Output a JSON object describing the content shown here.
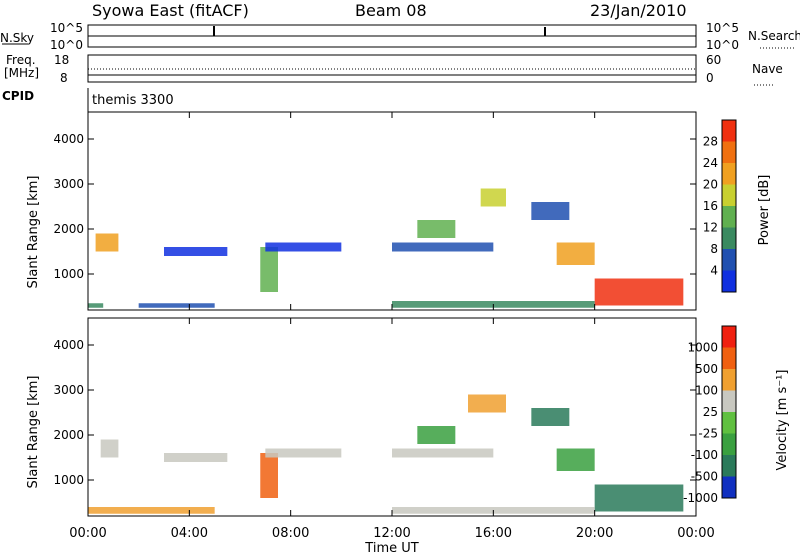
{
  "header": {
    "station": "Syowa East (fitACF)",
    "beam": "Beam 08",
    "date": "23/Jan/2010"
  },
  "nsky_panel": {
    "left_label": "N.Sky",
    "left_ticks": [
      "10^5",
      "10^0"
    ],
    "right_ticks": [
      "10^5",
      "10^0"
    ],
    "right_label": "N.Search"
  },
  "freq_panel": {
    "left_label_1": "Freq.",
    "left_label_2": "[MHz]",
    "left_ticks": [
      "18",
      "8"
    ],
    "right_ticks": [
      "60",
      "0"
    ],
    "right_label": "Nave"
  },
  "cpid_panel": {
    "left_label": "CPID",
    "program": "themis 3300"
  },
  "chart_data": [
    {
      "type": "heatmap",
      "panel": "power",
      "ylabel": "Slant Range [km]",
      "yticks": [
        1000,
        2000,
        3000,
        4000
      ],
      "ylim": [
        200,
        4600
      ],
      "xlim_hours": [
        0,
        24
      ],
      "xticks": [
        "00:00",
        "04:00",
        "08:00",
        "12:00",
        "16:00",
        "20:00",
        "00:00"
      ],
      "colorbar": {
        "label": "Power [dB]",
        "ticks": [
          "4",
          "8",
          "12",
          "16",
          "20",
          "24",
          "28"
        ],
        "colors": [
          "#1030e0",
          "#2050b0",
          "#3a8a60",
          "#60b050",
          "#c8d030",
          "#f0a020",
          "#f07010",
          "#f03010"
        ]
      },
      "regions": [
        {
          "t0": 0.0,
          "t1": 0.6,
          "r0": 250,
          "r1": 350,
          "level": 2
        },
        {
          "t0": 0.3,
          "t1": 1.2,
          "r0": 1500,
          "r1": 1900,
          "level": 5
        },
        {
          "t0": 2.0,
          "t1": 5.0,
          "r0": 250,
          "r1": 350,
          "level": 1
        },
        {
          "t0": 3.0,
          "t1": 5.5,
          "r0": 1400,
          "r1": 1600,
          "level": 0
        },
        {
          "t0": 6.8,
          "t1": 7.5,
          "r0": 600,
          "r1": 1600,
          "level": 3
        },
        {
          "t0": 7.0,
          "t1": 10.0,
          "r0": 1500,
          "r1": 1700,
          "level": 0
        },
        {
          "t0": 12.0,
          "t1": 16.0,
          "r0": 1500,
          "r1": 1700,
          "level": 1
        },
        {
          "t0": 13.0,
          "t1": 14.5,
          "r0": 1800,
          "r1": 2200,
          "level": 3
        },
        {
          "t0": 15.5,
          "t1": 16.5,
          "r0": 2500,
          "r1": 2900,
          "level": 4
        },
        {
          "t0": 17.5,
          "t1": 19.0,
          "r0": 2200,
          "r1": 2600,
          "level": 1
        },
        {
          "t0": 18.5,
          "t1": 20.0,
          "r0": 1200,
          "r1": 1700,
          "level": 5
        },
        {
          "t0": 20.0,
          "t1": 23.5,
          "r0": 300,
          "r1": 900,
          "level": 7
        },
        {
          "t0": 12.0,
          "t1": 20.0,
          "r0": 250,
          "r1": 400,
          "level": 2
        }
      ]
    },
    {
      "type": "heatmap",
      "panel": "velocity",
      "ylabel": "Slant Range [km]",
      "yticks": [
        1000,
        2000,
        3000,
        4000
      ],
      "ylim": [
        200,
        4600
      ],
      "xlim_hours": [
        0,
        24
      ],
      "xticks": [
        "00:00",
        "04:00",
        "08:00",
        "12:00",
        "16:00",
        "20:00",
        "00:00"
      ],
      "xlabel": "Time UT",
      "colorbar": {
        "label": "Velocity [m s⁻¹]",
        "ticks": [
          "1000",
          "500",
          "100",
          "25",
          "-25",
          "-100",
          "-500",
          "-1000"
        ],
        "colors": [
          "#1030c0",
          "#2a7a5a",
          "#3aa040",
          "#60c040",
          "#c8c8c0",
          "#f0a030",
          "#f06010",
          "#f02010"
        ]
      },
      "regions": [
        {
          "t0": 0.0,
          "t1": 5.0,
          "r0": 250,
          "r1": 400,
          "level": 5
        },
        {
          "t0": 0.5,
          "t1": 1.2,
          "r0": 1500,
          "r1": 1900,
          "level": 4
        },
        {
          "t0": 3.0,
          "t1": 5.5,
          "r0": 1400,
          "r1": 1600,
          "level": 4
        },
        {
          "t0": 6.8,
          "t1": 7.5,
          "r0": 600,
          "r1": 1600,
          "level": 6
        },
        {
          "t0": 7.0,
          "t1": 10.0,
          "r0": 1500,
          "r1": 1700,
          "level": 4
        },
        {
          "t0": 12.0,
          "t1": 16.0,
          "r0": 1500,
          "r1": 1700,
          "level": 4
        },
        {
          "t0": 13.0,
          "t1": 14.5,
          "r0": 1800,
          "r1": 2200,
          "level": 2
        },
        {
          "t0": 15.0,
          "t1": 16.5,
          "r0": 2500,
          "r1": 2900,
          "level": 5
        },
        {
          "t0": 17.5,
          "t1": 19.0,
          "r0": 2200,
          "r1": 2600,
          "level": 1
        },
        {
          "t0": 18.5,
          "t1": 20.0,
          "r0": 1200,
          "r1": 1700,
          "level": 2
        },
        {
          "t0": 20.0,
          "t1": 23.5,
          "r0": 300,
          "r1": 900,
          "level": 1
        },
        {
          "t0": 12.0,
          "t1": 20.0,
          "r0": 250,
          "r1": 400,
          "level": 4
        }
      ]
    }
  ]
}
